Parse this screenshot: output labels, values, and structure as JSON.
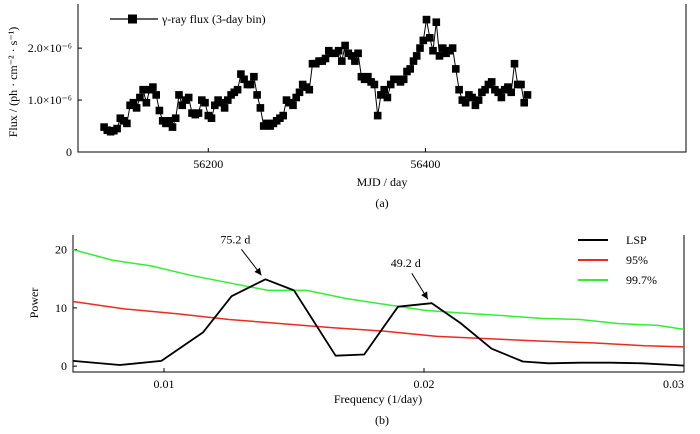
{
  "chart_data": [
    {
      "type": "line",
      "panel_label": "(a)",
      "xlabel": "MJD / day",
      "ylabel": "Flux / (ph · cm⁻² · s⁻¹)",
      "xlim": [
        56080,
        56640
      ],
      "ylim": [
        0,
        2.85e-06
      ],
      "xticks": [
        56200,
        56400
      ],
      "xtick_labels": [
        "56200",
        "56400"
      ],
      "yticks": [
        0,
        1e-06,
        2e-06
      ],
      "ytick_labels": [
        "0",
        "1.0×10⁻⁶",
        "2.0×10⁻⁶"
      ],
      "legend": {
        "label": "γ-ray flux (3-day bin)",
        "position": "top-left"
      },
      "series": [
        {
          "name": "γ-ray flux (3-day bin)",
          "x": [
            56104,
            56107,
            56110,
            56113,
            56116,
            56119,
            56122,
            56125,
            56128,
            56131,
            56134,
            56137,
            56140,
            56143,
            56146,
            56149,
            56152,
            56155,
            56158,
            56161,
            56164,
            56167,
            56170,
            56173,
            56176,
            56179,
            56182,
            56185,
            56188,
            56191,
            56194,
            56197,
            56200,
            56203,
            56206,
            56209,
            56212,
            56215,
            56218,
            56221,
            56224,
            56227,
            56230,
            56233,
            56236,
            56239,
            56242,
            56245,
            56248,
            56251,
            56254,
            56257,
            56260,
            56263,
            56266,
            56269,
            56272,
            56275,
            56278,
            56281,
            56284,
            56287,
            56290,
            56293,
            56296,
            56299,
            56302,
            56305,
            56308,
            56311,
            56314,
            56317,
            56320,
            56323,
            56326,
            56329,
            56332,
            56335,
            56338,
            56341,
            56344,
            56347,
            56350,
            56353,
            56356,
            56359,
            56362,
            56365,
            56368,
            56371,
            56374,
            56377,
            56380,
            56383,
            56386,
            56389,
            56392,
            56395,
            56398,
            56401,
            56404,
            56407,
            56410,
            56413,
            56416,
            56419,
            56422,
            56425,
            56428,
            56431,
            56434,
            56437,
            56440,
            56443,
            56446,
            56449,
            56452,
            56455,
            56458,
            56461,
            56464,
            56467,
            56470,
            56473,
            56476,
            56479,
            56482,
            56485,
            56488,
            56491,
            56494
          ],
          "y": [
            4.8e-07,
            4.2e-07,
            3.9e-07,
            4.1e-07,
            4.5e-07,
            6.5e-07,
            6e-07,
            5.5e-07,
            9e-07,
            9.5e-07,
            8.5e-07,
            1.05e-06,
            1.2e-06,
            9.5e-07,
            1.2e-06,
            1.25e-06,
            1.1e-06,
            8e-07,
            6e-07,
            5.5e-07,
            6e-07,
            4.8e-07,
            6.5e-07,
            1.1e-06,
            9e-07,
            1e-06,
            1.05e-06,
            7.5e-07,
            7.2e-07,
            7.5e-07,
            1e-06,
            9.5e-07,
            7e-07,
            6.5e-07,
            9e-07,
            1e-06,
            9.5e-07,
            8.5e-07,
            1e-06,
            1.1e-06,
            1.15e-06,
            1.2e-06,
            1.5e-06,
            1.4e-06,
            1.3e-06,
            1.3e-06,
            1.45e-06,
            1.1e-06,
            8.5e-07,
            5e-07,
            5.5e-07,
            5e-07,
            5.5e-07,
            6e-07,
            6.5e-07,
            7e-07,
            1e-06,
            9.5e-07,
            9e-07,
            1.05e-06,
            1.15e-06,
            1.3e-06,
            1.25e-06,
            1.2e-06,
            1.7e-06,
            1.7e-06,
            1.75e-06,
            1.75e-06,
            1.8e-06,
            1.95e-06,
            1.9e-06,
            1.9e-06,
            1.95e-06,
            1.75e-06,
            2.05e-06,
            1.9e-06,
            1.85e-06,
            1.75e-06,
            1.9e-06,
            1.45e-06,
            1.4e-06,
            1.45e-06,
            1.35e-06,
            1.3e-06,
            7e-07,
            1.1e-06,
            1.2e-06,
            1.05e-06,
            1.3e-06,
            1.4e-06,
            1.4e-06,
            1.35e-06,
            1.4e-06,
            1.55e-06,
            1.6e-06,
            1.75e-06,
            1.85e-06,
            2e-06,
            2.15e-06,
            2.55e-06,
            2.2e-06,
            1.95e-06,
            2.5e-06,
            1.85e-06,
            2e-06,
            1.9e-06,
            1.95e-06,
            2e-06,
            1.6e-06,
            1.2e-06,
            1e-06,
            9.5e-07,
            1.1e-06,
            1.05e-06,
            9e-07,
            1e-06,
            1.15e-06,
            1.2e-06,
            1.3e-06,
            1.35e-06,
            1.2e-06,
            1.15e-06,
            1.05e-06,
            1.2e-06,
            1.25e-06,
            1.15e-06,
            1.7e-06,
            1.3e-06,
            1.3e-06,
            9.5e-07,
            1.1e-06
          ]
        }
      ]
    },
    {
      "type": "line",
      "panel_label": "(b)",
      "xlabel": "Frequency (1/day)",
      "ylabel": "Power",
      "xlim": [
        0.0065,
        0.03
      ],
      "ylim": [
        -1,
        22.5
      ],
      "xticks": [
        0.01,
        0.02,
        0.03
      ],
      "xtick_labels": [
        "0.01",
        "0.02",
        "0.03"
      ],
      "yticks": [
        0,
        10,
        20
      ],
      "ytick_labels": [
        "0",
        "10",
        "20"
      ],
      "legend": {
        "position": "top-right"
      },
      "series": [
        {
          "name": "LSP",
          "color": "#000000",
          "x": [
            0.0065,
            0.0083,
            0.0099,
            0.0115,
            0.0126,
            0.0139,
            0.015,
            0.0166,
            0.0177,
            0.019,
            0.0203,
            0.0214,
            0.0226,
            0.0238,
            0.0248,
            0.026,
            0.0272,
            0.0284,
            0.0296,
            0.03
          ],
          "y": [
            0.9,
            0.2,
            0.9,
            5.8,
            12.0,
            14.9,
            13.0,
            1.8,
            2.0,
            10.2,
            10.8,
            7.4,
            3.0,
            0.8,
            0.5,
            0.6,
            0.6,
            0.5,
            0.2,
            0.1
          ]
        },
        {
          "name": "95%",
          "color": "#ee2a1e",
          "x": [
            0.0065,
            0.0085,
            0.0105,
            0.0125,
            0.0145,
            0.0165,
            0.0185,
            0.0205,
            0.0225,
            0.0245,
            0.0265,
            0.0285,
            0.03
          ],
          "y": [
            11.1,
            9.8,
            9.0,
            8.0,
            7.3,
            6.6,
            6.0,
            5.1,
            4.7,
            4.3,
            4.0,
            3.5,
            3.3
          ]
        },
        {
          "name": "99.7%",
          "color": "#33ee33",
          "x": [
            0.0065,
            0.008,
            0.0095,
            0.011,
            0.0125,
            0.014,
            0.0155,
            0.017,
            0.0185,
            0.02,
            0.0215,
            0.023,
            0.0245,
            0.026,
            0.0275,
            0.029,
            0.03
          ],
          "y": [
            20.0,
            18.2,
            17.2,
            15.6,
            14.3,
            13.0,
            13.0,
            11.6,
            10.6,
            9.6,
            9.1,
            8.7,
            8.2,
            8.0,
            7.3,
            7.0,
            6.3
          ]
        }
      ],
      "annotations": [
        {
          "text": "75.2 d",
          "x": 0.0139,
          "y": 14.9
        },
        {
          "text": "49.2 d",
          "x": 0.0203,
          "y": 10.8
        }
      ]
    }
  ]
}
